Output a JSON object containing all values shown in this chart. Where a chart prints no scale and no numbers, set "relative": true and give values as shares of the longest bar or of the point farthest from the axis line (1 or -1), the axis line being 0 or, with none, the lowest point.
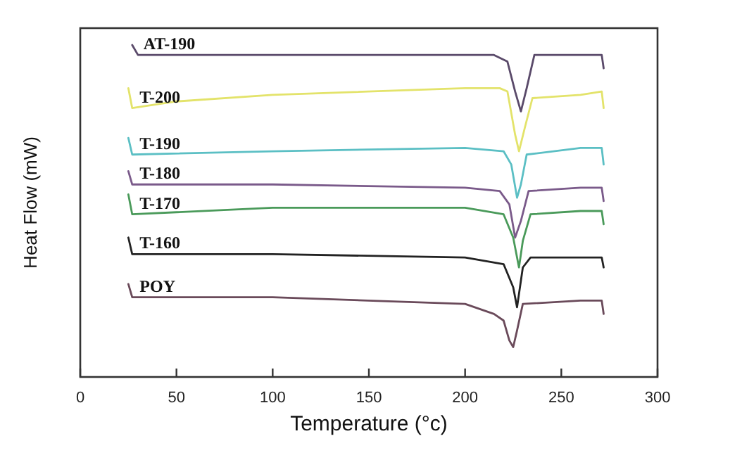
{
  "chart_data": {
    "type": "line",
    "relative": true,
    "xlabel": "Temperature (°c)",
    "ylabel": "Heat Flow (mW)",
    "xlim": [
      0,
      300
    ],
    "xticks": [
      0,
      50,
      100,
      150,
      200,
      250,
      300
    ],
    "grid": false,
    "line_style": "solid",
    "series": [
      {
        "name": "AT-190",
        "color": "#5a4a6a",
        "x": [
          27,
          30,
          100,
          200,
          215,
          222,
          226,
          229,
          232,
          236,
          260,
          271,
          272
        ],
        "values": [
          1.0,
          0.97,
          0.97,
          0.97,
          0.97,
          0.95,
          0.86,
          0.8,
          0.87,
          0.97,
          0.97,
          0.97,
          0.93
        ]
      },
      {
        "name": "T-200",
        "color": "#e3e36a",
        "x": [
          25,
          27,
          50,
          100,
          200,
          218,
          222,
          226,
          228,
          231,
          235,
          260,
          271,
          272
        ],
        "values": [
          0.87,
          0.81,
          0.83,
          0.85,
          0.87,
          0.87,
          0.86,
          0.73,
          0.68,
          0.75,
          0.84,
          0.85,
          0.86,
          0.81
        ]
      },
      {
        "name": "T-190",
        "color": "#5bbfc4",
        "x": [
          25,
          27,
          100,
          200,
          220,
          224,
          227,
          229,
          232,
          260,
          271,
          272
        ],
        "values": [
          0.72,
          0.67,
          0.68,
          0.69,
          0.68,
          0.64,
          0.54,
          0.58,
          0.67,
          0.69,
          0.69,
          0.64
        ]
      },
      {
        "name": "T-180",
        "color": "#7a5a8a",
        "x": [
          25,
          27,
          100,
          200,
          218,
          223,
          226,
          229,
          233,
          260,
          271,
          272
        ],
        "values": [
          0.62,
          0.58,
          0.58,
          0.57,
          0.56,
          0.52,
          0.42,
          0.47,
          0.56,
          0.57,
          0.57,
          0.53
        ]
      },
      {
        "name": "T-170",
        "color": "#4a9a5a",
        "x": [
          25,
          27,
          100,
          200,
          220,
          225,
          228,
          230,
          234,
          260,
          271,
          272
        ],
        "values": [
          0.55,
          0.49,
          0.51,
          0.51,
          0.49,
          0.42,
          0.33,
          0.41,
          0.49,
          0.5,
          0.5,
          0.46
        ]
      },
      {
        "name": "T-160",
        "color": "#222222",
        "x": [
          25,
          27,
          100,
          200,
          220,
          225,
          227,
          230,
          234,
          260,
          271,
          272
        ],
        "values": [
          0.42,
          0.37,
          0.37,
          0.36,
          0.34,
          0.27,
          0.21,
          0.33,
          0.36,
          0.36,
          0.36,
          0.33
        ]
      },
      {
        "name": "POY",
        "color": "#6a4a5a",
        "x": [
          25,
          27,
          100,
          200,
          215,
          220,
          223,
          225,
          227,
          230,
          260,
          271,
          272
        ],
        "values": [
          0.28,
          0.24,
          0.24,
          0.22,
          0.19,
          0.17,
          0.11,
          0.09,
          0.14,
          0.22,
          0.23,
          0.23,
          0.19
        ]
      }
    ]
  }
}
